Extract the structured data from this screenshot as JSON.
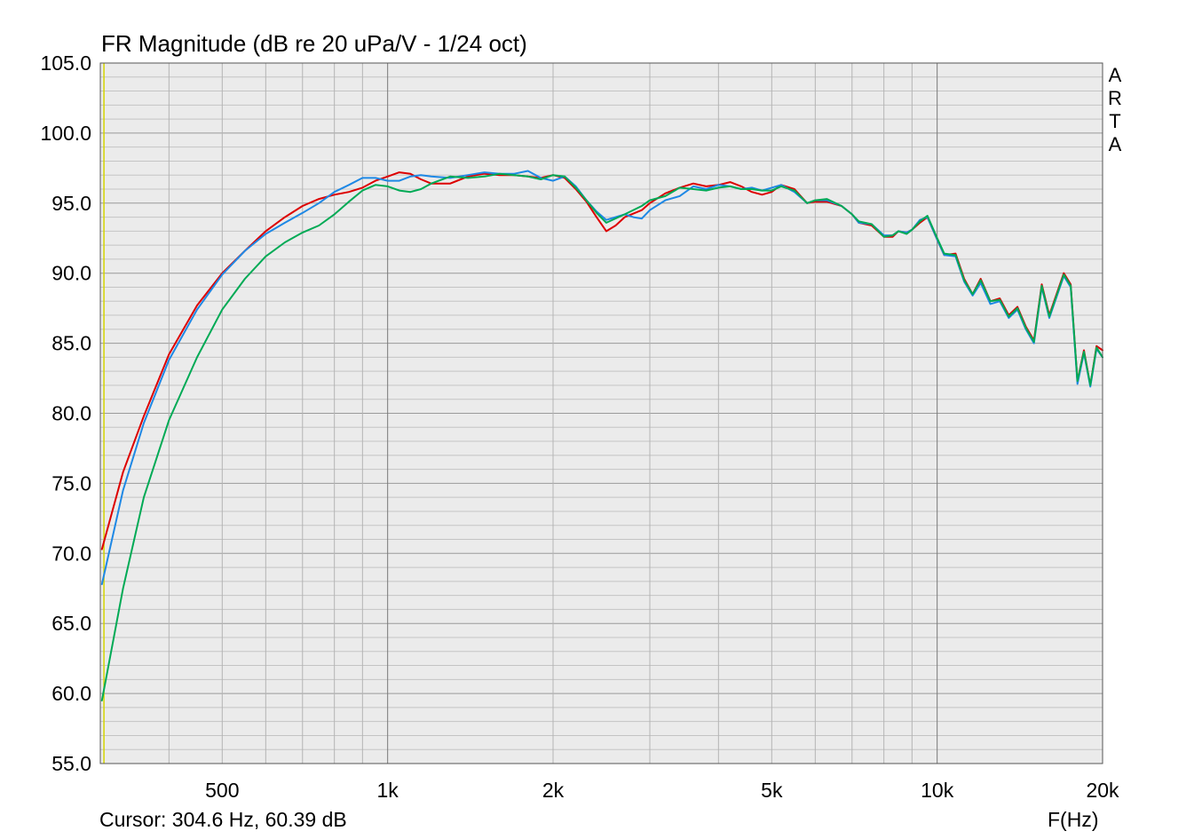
{
  "chart_data": {
    "type": "line",
    "title": "FR Magnitude (dB re 20 uPa/V - 1/24 oct)",
    "xlabel": "F(Hz)",
    "ylabel": "",
    "x_scale": "log",
    "xlim": [
      300,
      20000
    ],
    "ylim": [
      55,
      105
    ],
    "grid": true,
    "background": "#ebebeb",
    "x_tick_labels": [
      {
        "value": 500,
        "label": "500"
      },
      {
        "value": 1000,
        "label": "1k"
      },
      {
        "value": 2000,
        "label": "2k"
      },
      {
        "value": 5000,
        "label": "5k"
      },
      {
        "value": 10000,
        "label": "10k"
      },
      {
        "value": 20000,
        "label": "20k"
      }
    ],
    "y_tick_labels": [
      "55.0",
      "60.0",
      "65.0",
      "70.0",
      "75.0",
      "80.0",
      "85.0",
      "90.0",
      "95.0",
      "100.0",
      "105.0"
    ],
    "cursor_frequency": 304.6,
    "series": [
      {
        "color": "#dd0000",
        "points": [
          [
            302,
            70.3
          ],
          [
            330,
            75.8
          ],
          [
            360,
            79.8
          ],
          [
            400,
            84.2
          ],
          [
            450,
            87.7
          ],
          [
            500,
            90.0
          ],
          [
            550,
            91.6
          ],
          [
            600,
            93.0
          ],
          [
            650,
            94.0
          ],
          [
            700,
            94.8
          ],
          [
            750,
            95.3
          ],
          [
            800,
            95.6
          ],
          [
            850,
            95.8
          ],
          [
            900,
            96.1
          ],
          [
            950,
            96.6
          ],
          [
            1000,
            96.9
          ],
          [
            1050,
            97.2
          ],
          [
            1100,
            97.1
          ],
          [
            1150,
            96.7
          ],
          [
            1200,
            96.4
          ],
          [
            1300,
            96.4
          ],
          [
            1400,
            96.9
          ],
          [
            1500,
            97.1
          ],
          [
            1600,
            97.0
          ],
          [
            1700,
            97.0
          ],
          [
            1800,
            96.9
          ],
          [
            1900,
            96.8
          ],
          [
            2000,
            97.0
          ],
          [
            2100,
            96.8
          ],
          [
            2200,
            96.0
          ],
          [
            2300,
            95.1
          ],
          [
            2400,
            94.0
          ],
          [
            2500,
            93.0
          ],
          [
            2600,
            93.4
          ],
          [
            2700,
            94.0
          ],
          [
            2900,
            94.5
          ],
          [
            3000,
            95.0
          ],
          [
            3200,
            95.7
          ],
          [
            3400,
            96.1
          ],
          [
            3600,
            96.4
          ],
          [
            3800,
            96.2
          ],
          [
            4000,
            96.3
          ],
          [
            4200,
            96.5
          ],
          [
            4400,
            96.2
          ],
          [
            4600,
            95.8
          ],
          [
            4800,
            95.6
          ],
          [
            5000,
            95.8
          ],
          [
            5200,
            96.3
          ],
          [
            5500,
            96.0
          ],
          [
            5800,
            95.0
          ],
          [
            6000,
            95.1
          ],
          [
            6300,
            95.1
          ],
          [
            6700,
            94.8
          ],
          [
            7000,
            94.2
          ],
          [
            7200,
            93.6
          ],
          [
            7600,
            93.4
          ],
          [
            8000,
            92.6
          ],
          [
            8300,
            92.6
          ],
          [
            8500,
            93.0
          ],
          [
            8800,
            92.9
          ],
          [
            9000,
            93.1
          ],
          [
            9300,
            93.6
          ],
          [
            9600,
            94.0
          ],
          [
            10000,
            92.4
          ],
          [
            10300,
            91.3
          ],
          [
            10800,
            91.4
          ],
          [
            11200,
            89.6
          ],
          [
            11600,
            88.5
          ],
          [
            12000,
            89.6
          ],
          [
            12500,
            88.0
          ],
          [
            13000,
            88.2
          ],
          [
            13500,
            87.0
          ],
          [
            14000,
            87.6
          ],
          [
            14500,
            86.2
          ],
          [
            15000,
            85.2
          ],
          [
            15500,
            89.2
          ],
          [
            16000,
            87.0
          ],
          [
            17000,
            90.0
          ],
          [
            17500,
            89.2
          ],
          [
            18000,
            82.3
          ],
          [
            18500,
            84.5
          ],
          [
            19000,
            82.0
          ],
          [
            19500,
            84.8
          ],
          [
            20000,
            84.5
          ]
        ]
      },
      {
        "color": "#1e88e5",
        "points": [
          [
            302,
            67.8
          ],
          [
            330,
            74.5
          ],
          [
            360,
            79.3
          ],
          [
            400,
            83.8
          ],
          [
            450,
            87.4
          ],
          [
            500,
            89.9
          ],
          [
            550,
            91.6
          ],
          [
            600,
            92.8
          ],
          [
            650,
            93.6
          ],
          [
            700,
            94.3
          ],
          [
            750,
            95.0
          ],
          [
            800,
            95.8
          ],
          [
            850,
            96.3
          ],
          [
            900,
            96.8
          ],
          [
            950,
            96.8
          ],
          [
            1000,
            96.6
          ],
          [
            1050,
            96.6
          ],
          [
            1100,
            96.9
          ],
          [
            1150,
            97.0
          ],
          [
            1200,
            96.9
          ],
          [
            1300,
            96.8
          ],
          [
            1400,
            97.0
          ],
          [
            1500,
            97.2
          ],
          [
            1600,
            97.1
          ],
          [
            1700,
            97.1
          ],
          [
            1800,
            97.3
          ],
          [
            1900,
            96.8
          ],
          [
            2000,
            96.6
          ],
          [
            2100,
            96.9
          ],
          [
            2200,
            96.2
          ],
          [
            2300,
            95.2
          ],
          [
            2400,
            94.4
          ],
          [
            2500,
            93.8
          ],
          [
            2700,
            94.2
          ],
          [
            2800,
            94.0
          ],
          [
            2900,
            93.9
          ],
          [
            3000,
            94.5
          ],
          [
            3200,
            95.2
          ],
          [
            3400,
            95.5
          ],
          [
            3600,
            96.2
          ],
          [
            3800,
            96.0
          ],
          [
            4000,
            96.3
          ],
          [
            4200,
            96.2
          ],
          [
            4400,
            96.0
          ],
          [
            4600,
            96.1
          ],
          [
            4800,
            95.9
          ],
          [
            5000,
            96.1
          ],
          [
            5200,
            96.3
          ],
          [
            5500,
            95.8
          ],
          [
            5800,
            95.0
          ],
          [
            6000,
            95.2
          ],
          [
            6300,
            95.2
          ],
          [
            6700,
            94.8
          ],
          [
            7000,
            94.2
          ],
          [
            7200,
            93.6
          ],
          [
            7600,
            93.5
          ],
          [
            8000,
            92.7
          ],
          [
            8300,
            92.7
          ],
          [
            8500,
            93.0
          ],
          [
            8800,
            92.9
          ],
          [
            9000,
            93.1
          ],
          [
            9300,
            93.8
          ],
          [
            9600,
            94.0
          ],
          [
            10000,
            92.4
          ],
          [
            10300,
            91.3
          ],
          [
            10800,
            91.2
          ],
          [
            11200,
            89.4
          ],
          [
            11600,
            88.4
          ],
          [
            12000,
            89.3
          ],
          [
            12500,
            87.8
          ],
          [
            13000,
            88.0
          ],
          [
            13500,
            86.8
          ],
          [
            14000,
            87.4
          ],
          [
            14500,
            86.0
          ],
          [
            15000,
            85.0
          ],
          [
            15500,
            89.0
          ],
          [
            16000,
            86.8
          ],
          [
            17000,
            89.8
          ],
          [
            17500,
            89.0
          ],
          [
            18000,
            82.1
          ],
          [
            18500,
            84.3
          ],
          [
            19000,
            81.9
          ],
          [
            19500,
            84.6
          ],
          [
            20000,
            84.0
          ]
        ]
      },
      {
        "color": "#00aa55",
        "points": [
          [
            302,
            59.5
          ],
          [
            330,
            67.5
          ],
          [
            360,
            74.0
          ],
          [
            400,
            79.5
          ],
          [
            450,
            84.0
          ],
          [
            500,
            87.4
          ],
          [
            550,
            89.6
          ],
          [
            600,
            91.2
          ],
          [
            650,
            92.2
          ],
          [
            700,
            92.9
          ],
          [
            750,
            93.4
          ],
          [
            800,
            94.2
          ],
          [
            850,
            95.1
          ],
          [
            900,
            95.9
          ],
          [
            950,
            96.3
          ],
          [
            1000,
            96.2
          ],
          [
            1050,
            95.9
          ],
          [
            1100,
            95.8
          ],
          [
            1150,
            96.0
          ],
          [
            1200,
            96.4
          ],
          [
            1300,
            96.9
          ],
          [
            1400,
            96.8
          ],
          [
            1500,
            96.9
          ],
          [
            1600,
            97.1
          ],
          [
            1700,
            97.0
          ],
          [
            1800,
            96.9
          ],
          [
            1900,
            96.7
          ],
          [
            2000,
            97.0
          ],
          [
            2100,
            96.9
          ],
          [
            2200,
            96.1
          ],
          [
            2300,
            95.2
          ],
          [
            2400,
            94.3
          ],
          [
            2500,
            93.6
          ],
          [
            2700,
            94.2
          ],
          [
            2900,
            94.8
          ],
          [
            3000,
            95.2
          ],
          [
            3200,
            95.5
          ],
          [
            3400,
            96.1
          ],
          [
            3600,
            96.0
          ],
          [
            3800,
            95.9
          ],
          [
            4000,
            96.1
          ],
          [
            4200,
            96.2
          ],
          [
            4400,
            96.0
          ],
          [
            4600,
            96.0
          ],
          [
            4800,
            95.9
          ],
          [
            5000,
            95.9
          ],
          [
            5200,
            96.2
          ],
          [
            5500,
            95.9
          ],
          [
            5800,
            95.0
          ],
          [
            6000,
            95.2
          ],
          [
            6300,
            95.3
          ],
          [
            6700,
            94.8
          ],
          [
            7000,
            94.2
          ],
          [
            7200,
            93.7
          ],
          [
            7600,
            93.5
          ],
          [
            8000,
            92.6
          ],
          [
            8300,
            92.7
          ],
          [
            8500,
            93.0
          ],
          [
            8800,
            92.8
          ],
          [
            9000,
            93.1
          ],
          [
            9300,
            93.7
          ],
          [
            9600,
            94.1
          ],
          [
            10000,
            92.5
          ],
          [
            10300,
            91.4
          ],
          [
            10800,
            91.3
          ],
          [
            11200,
            89.5
          ],
          [
            11600,
            88.5
          ],
          [
            12000,
            89.5
          ],
          [
            12500,
            88.0
          ],
          [
            13000,
            88.1
          ],
          [
            13500,
            86.9
          ],
          [
            14000,
            87.5
          ],
          [
            14500,
            86.1
          ],
          [
            15000,
            85.1
          ],
          [
            15500,
            89.1
          ],
          [
            16000,
            86.9
          ],
          [
            17000,
            89.9
          ],
          [
            17500,
            89.1
          ],
          [
            18000,
            82.3
          ],
          [
            18500,
            84.4
          ],
          [
            19000,
            82.0
          ],
          [
            19500,
            84.7
          ],
          [
            20000,
            84.0
          ]
        ]
      }
    ]
  },
  "title": "FR Magnitude (dB re 20 uPa/V - 1/24 oct)",
  "cursor_readout": "Cursor: 304.6 Hz, 60.39 dB",
  "x_unit": "F(Hz)",
  "watermark": [
    "A",
    "R",
    "T",
    "A"
  ]
}
